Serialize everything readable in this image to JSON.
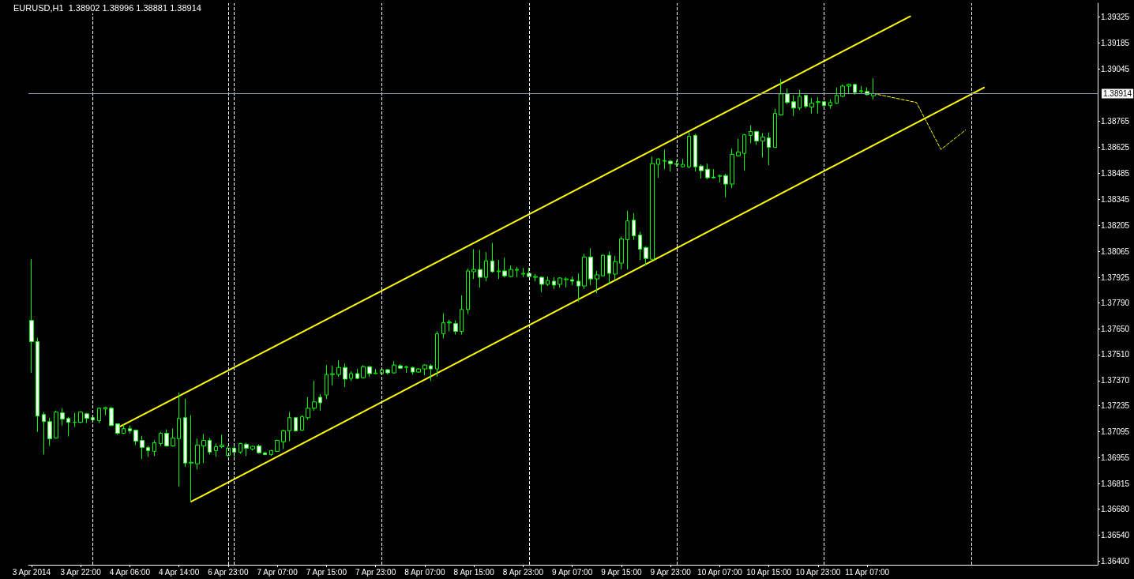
{
  "chart_data": {
    "type": "candlestick",
    "title": "EURUSD,H1  1.38902 1.38996 1.38881 1.38914",
    "color": "#00ff00",
    "categories": [
      "3 Apr 2014",
      null,
      null,
      null,
      null,
      null,
      null,
      null,
      "3 Apr 22:00",
      null,
      null,
      null,
      null,
      null,
      null,
      null,
      "4 Apr 06:00",
      null,
      null,
      null,
      null,
      null,
      null,
      null,
      "4 Apr 14:00",
      null,
      null,
      null,
      null,
      null,
      null,
      null,
      "6 Apr 23:00",
      null,
      null,
      null,
      null,
      null,
      null,
      null,
      "7 Apr 07:00",
      null,
      null,
      null,
      null,
      null,
      null,
      null,
      "7 Apr 15:00",
      null,
      null,
      null,
      null,
      null,
      null,
      null,
      "7 Apr 23:00",
      null,
      null,
      null,
      null,
      null,
      null,
      null,
      "8 Apr 07:00",
      null,
      null,
      null,
      null,
      null,
      null,
      null,
      "8 Apr 15:00",
      null,
      null,
      null,
      null,
      null,
      null,
      null,
      "8 Apr 23:00",
      null,
      null,
      null,
      null,
      null,
      null,
      null,
      "9 Apr 07:00",
      null,
      null,
      null,
      null,
      null,
      null,
      null,
      "9 Apr 15:00",
      null,
      null,
      null,
      null,
      null,
      null,
      null,
      "9 Apr 23:00",
      null,
      null,
      null,
      null,
      null,
      null,
      null,
      "10 Apr 07:00",
      null,
      null,
      null,
      null,
      null,
      null,
      null,
      "10 Apr 15:00",
      null,
      null,
      null,
      null,
      null,
      null,
      null,
      "10 Apr 23:00",
      null,
      null,
      null,
      null,
      null,
      null,
      null,
      "11 Apr 07:00",
      null,
      null,
      null,
      null,
      null,
      null,
      null,
      null,
      null,
      null,
      null,
      null,
      null,
      null,
      null,
      null,
      null,
      null,
      null,
      null,
      null,
      null,
      null,
      null,
      null,
      null,
      null,
      null,
      null,
      null,
      null,
      null,
      null,
      null,
      null,
      null,
      null
    ],
    "ohlc": [
      [
        1.37694,
        1.38023,
        1.37412,
        1.3758
      ],
      [
        1.3758,
        1.37601,
        1.37095,
        1.3718
      ],
      [
        1.37188,
        1.37201,
        1.36973,
        1.3715
      ],
      [
        1.3715,
        1.37171,
        1.37019,
        1.37058
      ],
      [
        1.37062,
        1.37209,
        1.37058,
        1.37201
      ],
      [
        1.37197,
        1.37222,
        1.37129,
        1.37163
      ],
      [
        1.37167,
        1.37176,
        1.3707,
        1.37146
      ],
      [
        1.37146,
        1.37197,
        1.37121,
        1.37147
      ],
      [
        1.37146,
        1.37205,
        1.37142,
        1.37201
      ],
      [
        1.37192,
        1.37197,
        1.37142,
        1.37167
      ],
      [
        1.37171,
        1.37175,
        1.37155,
        1.37159
      ],
      [
        1.37155,
        1.37226,
        1.37142,
        1.37222
      ],
      [
        1.37218,
        1.3723,
        1.37184,
        1.37226
      ],
      [
        1.37222,
        1.3723,
        1.37125,
        1.37129
      ],
      [
        1.37138,
        1.3714,
        1.37079,
        1.37087
      ],
      [
        1.37087,
        1.37133,
        1.37083,
        1.37112
      ],
      [
        1.37112,
        1.37129,
        1.37087,
        1.371
      ],
      [
        1.37104,
        1.37108,
        1.37024,
        1.37045
      ],
      [
        1.37049,
        1.37074,
        1.36948,
        1.37011
      ],
      [
        1.37011,
        1.37019,
        1.36961,
        1.36994
      ],
      [
        1.3699,
        1.37049,
        1.36965,
        1.37036
      ],
      [
        1.37032,
        1.37095,
        1.37019,
        1.37087
      ],
      [
        1.37087,
        1.37108,
        1.37015,
        1.37019
      ],
      [
        1.37019,
        1.37112,
        1.37015,
        1.37062
      ],
      [
        1.37058,
        1.37306,
        1.368,
        1.37167
      ],
      [
        1.37171,
        1.37272,
        1.36906,
        1.36927
      ],
      [
        1.36927,
        1.37184,
        1.3672,
        1.36931
      ],
      [
        1.36923,
        1.37058,
        1.36893,
        1.37024
      ],
      [
        1.37019,
        1.37083,
        1.36927,
        1.37049
      ],
      [
        1.37049,
        1.37062,
        1.36973,
        1.36986
      ],
      [
        1.36994,
        1.37032,
        1.36961,
        1.37015
      ],
      [
        1.37015,
        1.37079,
        1.37007,
        1.37024
      ],
      [
        1.36969,
        1.37019,
        1.36961,
        1.37007
      ],
      [
        1.37007,
        1.37019,
        1.36956,
        1.36986
      ],
      [
        1.36986,
        1.37036,
        1.36977,
        1.37032
      ],
      [
        1.37028,
        1.37036,
        1.36965,
        1.37007
      ],
      [
        1.37003,
        1.37019,
        1.36994,
        1.37017
      ],
      [
        1.37019,
        1.37028,
        1.36977,
        1.36982
      ],
      [
        1.36982,
        1.36986,
        1.36969,
        1.36973
      ],
      [
        1.36973,
        1.36998,
        1.36965,
        1.36994
      ],
      [
        1.3699,
        1.37053,
        1.36986,
        1.37049
      ],
      [
        1.37041,
        1.37108,
        1.37003,
        1.371
      ],
      [
        1.371,
        1.37201,
        1.37045,
        1.37171
      ],
      [
        1.37171,
        1.37176,
        1.37096,
        1.371
      ],
      [
        1.37104,
        1.37184,
        1.371,
        1.37176
      ],
      [
        1.37171,
        1.37281,
        1.37159,
        1.37222
      ],
      [
        1.37222,
        1.37369,
        1.37209,
        1.37256
      ],
      [
        1.37281,
        1.37298,
        1.37209,
        1.37251
      ],
      [
        1.37293,
        1.37454,
        1.37272,
        1.37403
      ],
      [
        1.37403,
        1.3745,
        1.37344,
        1.37407
      ],
      [
        1.37403,
        1.37479,
        1.37391,
        1.37441
      ],
      [
        1.37441,
        1.37462,
        1.37336,
        1.37378
      ],
      [
        1.37382,
        1.3742,
        1.37369,
        1.37408
      ],
      [
        1.37408,
        1.37433,
        1.37378,
        1.37382
      ],
      [
        1.37386,
        1.37454,
        1.37382,
        1.37445
      ],
      [
        1.37445,
        1.3745,
        1.37391,
        1.37408
      ],
      [
        1.37408,
        1.37433,
        1.37404,
        1.37412
      ],
      [
        1.37408,
        1.37433,
        1.37404,
        1.37429
      ],
      [
        1.37429,
        1.37433,
        1.37404,
        1.37412
      ],
      [
        1.37412,
        1.37475,
        1.37408,
        1.37454
      ],
      [
        1.3745,
        1.37458,
        1.37433,
        1.37437
      ],
      [
        1.37441,
        1.3745,
        1.37412,
        1.37445
      ],
      [
        1.37441,
        1.37445,
        1.37403,
        1.37416
      ],
      [
        1.37416,
        1.37437,
        1.37412,
        1.37433
      ],
      [
        1.37433,
        1.37458,
        1.37399,
        1.37454
      ],
      [
        1.3745,
        1.37458,
        1.37369,
        1.37433
      ],
      [
        1.37433,
        1.37635,
        1.37391,
        1.37622
      ],
      [
        1.37622,
        1.37732,
        1.37597,
        1.37681
      ],
      [
        1.37681,
        1.37698,
        1.37635,
        1.37685
      ],
      [
        1.37677,
        1.37694,
        1.37618,
        1.37635
      ],
      [
        1.37635,
        1.37829,
        1.37618,
        1.37753
      ],
      [
        1.37753,
        1.37972,
        1.37728,
        1.3796
      ],
      [
        1.37956,
        1.38077,
        1.37917,
        1.37968
      ],
      [
        1.37968,
        1.38073,
        1.37871,
        1.37926
      ],
      [
        1.37926,
        1.38061,
        1.37905,
        1.38014
      ],
      [
        1.38014,
        1.38111,
        1.37951,
        1.37956
      ],
      [
        1.37956,
        1.38019,
        1.37917,
        1.3796
      ],
      [
        1.3796,
        1.38031,
        1.37926,
        1.37934
      ],
      [
        1.3793,
        1.37989,
        1.37926,
        1.37968
      ],
      [
        1.37964,
        1.37981,
        1.37926,
        1.37968
      ],
      [
        1.37943,
        1.37977,
        1.37926,
        1.37947
      ],
      [
        1.37947,
        1.37977,
        1.37926,
        1.3793
      ],
      [
        1.37926,
        1.37943,
        1.37905,
        1.3793
      ],
      [
        1.37926,
        1.3793,
        1.37846,
        1.37888
      ],
      [
        1.37888,
        1.3793,
        1.37879,
        1.37909
      ],
      [
        1.37905,
        1.37926,
        1.37863,
        1.37884
      ],
      [
        1.37888,
        1.37926,
        1.37871,
        1.37922
      ],
      [
        1.37913,
        1.37926,
        1.37871,
        1.37917
      ],
      [
        1.37913,
        1.3793,
        1.37884,
        1.37905
      ],
      [
        1.37905,
        1.37947,
        1.37795,
        1.37879
      ],
      [
        1.37879,
        1.38052,
        1.37863,
        1.38035
      ],
      [
        1.38035,
        1.38082,
        1.37884,
        1.37917
      ],
      [
        1.37917,
        1.3796,
        1.37841,
        1.37939
      ],
      [
        1.37934,
        1.38048,
        1.3793,
        1.38044
      ],
      [
        1.38044,
        1.38065,
        1.37892,
        1.37947
      ],
      [
        1.37943,
        1.3804,
        1.37913,
        1.3801
      ],
      [
        1.38002,
        1.38145,
        1.37968,
        1.38132
      ],
      [
        1.38128,
        1.38284,
        1.37968,
        1.38229
      ],
      [
        1.38233,
        1.38271,
        1.38128,
        1.38149
      ],
      [
        1.38153,
        1.3817,
        1.38019,
        1.38077
      ],
      [
        1.38086,
        1.38094,
        1.37989,
        1.38027
      ],
      [
        1.38023,
        1.38575,
        1.38019,
        1.38537
      ],
      [
        1.38533,
        1.38566,
        1.38461,
        1.38562
      ],
      [
        1.3855,
        1.38613,
        1.38507,
        1.38554
      ],
      [
        1.3855,
        1.38558,
        1.38495,
        1.38537
      ],
      [
        1.38533,
        1.38554,
        1.3852,
        1.38537
      ],
      [
        1.3852,
        1.38562,
        1.38516,
        1.38533
      ],
      [
        1.3852,
        1.38705,
        1.38512,
        1.38684
      ],
      [
        1.38689,
        1.38697,
        1.38495,
        1.3852
      ],
      [
        1.38524,
        1.38533,
        1.38457,
        1.38499
      ],
      [
        1.38507,
        1.38537,
        1.38453,
        1.38461
      ],
      [
        1.38465,
        1.38507,
        1.38457,
        1.38461
      ],
      [
        1.38469,
        1.38478,
        1.38436,
        1.38473
      ],
      [
        1.38473,
        1.38482,
        1.38356,
        1.38427
      ],
      [
        1.38427,
        1.38617,
        1.38406,
        1.38587
      ],
      [
        1.38579,
        1.38672,
        1.38575,
        1.386
      ],
      [
        1.38592,
        1.38697,
        1.38499,
        1.38692
      ],
      [
        1.38689,
        1.38743,
        1.38646,
        1.3871
      ],
      [
        1.3871,
        1.38714,
        1.38638,
        1.38659
      ],
      [
        1.38659,
        1.38701,
        1.38571,
        1.3868
      ],
      [
        1.38676,
        1.38705,
        1.38529,
        1.38625
      ],
      [
        1.38625,
        1.38832,
        1.38621,
        1.38807
      ],
      [
        1.38799,
        1.38992,
        1.38795,
        1.38912
      ],
      [
        1.38912,
        1.38942,
        1.38857,
        1.38866
      ],
      [
        1.3887,
        1.38904,
        1.38794,
        1.38836
      ],
      [
        1.38836,
        1.38933,
        1.38824,
        1.38899
      ],
      [
        1.38904,
        1.38908,
        1.38836,
        1.38845
      ],
      [
        1.38841,
        1.38891,
        1.38807,
        1.38862
      ],
      [
        1.38866,
        1.38895,
        1.38807,
        1.3887
      ],
      [
        1.3887,
        1.38874,
        1.38845,
        1.38849
      ],
      [
        1.38849,
        1.38883,
        1.38832,
        1.38866
      ],
      [
        1.38862,
        1.38946,
        1.38858,
        1.38904
      ],
      [
        1.38899,
        1.38963,
        1.38895,
        1.38954
      ],
      [
        1.38954,
        1.38967,
        1.38916,
        1.38963
      ],
      [
        1.38963,
        1.38967,
        1.38908,
        1.3892
      ],
      [
        1.38925,
        1.38954,
        1.38912,
        1.38929
      ],
      [
        1.38925,
        1.38946,
        1.38904,
        1.38908
      ],
      [
        1.38902,
        1.38996,
        1.38881,
        1.38914
      ],
      null,
      null,
      null,
      null,
      null,
      null,
      null,
      null,
      null,
      null,
      null,
      null,
      null,
      null,
      null,
      null,
      null,
      null,
      null,
      null,
      null,
      null,
      null,
      null,
      null,
      null,
      null,
      null,
      null,
      null,
      null,
      null,
      null,
      null,
      null,
      null
    ],
    "series": [
      {
        "type": "line",
        "color": "#ffff00",
        "line_style": "solid",
        "values": [
          null,
          null,
          null,
          null,
          null,
          null,
          null,
          null,
          null,
          null,
          null,
          null,
          null,
          null,
          1.37116,
          null,
          null,
          null,
          null,
          null,
          null,
          null,
          null,
          null,
          null,
          null,
          null,
          null,
          null,
          null,
          null,
          null,
          null,
          null,
          null,
          null,
          null,
          null,
          null,
          null,
          null,
          null,
          null,
          null,
          null,
          null,
          null,
          null,
          null,
          null,
          null,
          null,
          null,
          null,
          null,
          null,
          null,
          null,
          null,
          null,
          null,
          null,
          null,
          null,
          null,
          null,
          null,
          null,
          null,
          null,
          null,
          null,
          null,
          null,
          null,
          null,
          null,
          null,
          null,
          null,
          null,
          null,
          null,
          null,
          null,
          null,
          null,
          null,
          null,
          null,
          null,
          null,
          null,
          null,
          null,
          null,
          null,
          null,
          null,
          null,
          null,
          null,
          null,
          null,
          null,
          null,
          null,
          null,
          null,
          null,
          null,
          null,
          null,
          null,
          null,
          null,
          null,
          null,
          null,
          null,
          null,
          null,
          null,
          null,
          null,
          null,
          null,
          null,
          null,
          null,
          null,
          null,
          null,
          null,
          null,
          null,
          null,
          null,
          null,
          null,
          null,
          null,
          null,
          1.39329,
          null,
          null,
          null,
          null,
          null,
          null,
          null,
          null,
          null,
          null,
          null,
          null,
          null,
          null,
          null,
          null,
          null,
          null,
          null,
          null,
          null,
          null,
          null,
          null,
          null,
          null,
          null,
          null,
          null,
          null
        ]
      },
      {
        "type": "line",
        "color": "#ffff00",
        "line_style": "solid",
        "values": [
          null,
          null,
          null,
          null,
          null,
          null,
          null,
          null,
          null,
          null,
          null,
          null,
          null,
          null,
          null,
          null,
          null,
          null,
          null,
          null,
          null,
          null,
          null,
          null,
          null,
          null,
          1.3672,
          null,
          null,
          null,
          null,
          null,
          null,
          null,
          null,
          null,
          null,
          null,
          null,
          null,
          null,
          null,
          null,
          null,
          null,
          null,
          null,
          null,
          null,
          null,
          null,
          null,
          null,
          null,
          null,
          null,
          null,
          null,
          null,
          null,
          null,
          null,
          null,
          null,
          null,
          null,
          null,
          null,
          null,
          null,
          null,
          null,
          null,
          null,
          null,
          null,
          null,
          null,
          null,
          null,
          null,
          null,
          null,
          null,
          null,
          null,
          null,
          null,
          null,
          null,
          null,
          null,
          null,
          null,
          null,
          null,
          null,
          null,
          null,
          null,
          null,
          null,
          null,
          null,
          null,
          null,
          null,
          null,
          null,
          null,
          null,
          null,
          null,
          null,
          null,
          null,
          null,
          null,
          null,
          null,
          null,
          null,
          null,
          null,
          null,
          null,
          null,
          null,
          null,
          null,
          null,
          null,
          null,
          null,
          null,
          null,
          null,
          null,
          null,
          null,
          null,
          null,
          null,
          null,
          null,
          null,
          null,
          null,
          null,
          null,
          null,
          null,
          null,
          null,
          null,
          1.38946,
          null,
          null,
          null,
          null,
          null,
          null,
          null,
          null,
          null,
          null,
          null,
          null,
          null,
          null,
          null,
          null,
          null,
          null
        ]
      },
      {
        "type": "line",
        "color": "#ffff00",
        "line_style": "dashed",
        "values": [
          null,
          null,
          null,
          null,
          null,
          null,
          null,
          null,
          null,
          null,
          null,
          null,
          null,
          null,
          null,
          null,
          null,
          null,
          null,
          null,
          null,
          null,
          null,
          null,
          null,
          null,
          null,
          null,
          null,
          null,
          null,
          null,
          null,
          null,
          null,
          null,
          null,
          null,
          null,
          null,
          null,
          null,
          null,
          null,
          null,
          null,
          null,
          null,
          null,
          null,
          null,
          null,
          null,
          null,
          null,
          null,
          null,
          null,
          null,
          null,
          null,
          null,
          null,
          null,
          null,
          null,
          null,
          null,
          null,
          null,
          null,
          null,
          null,
          null,
          null,
          null,
          null,
          null,
          null,
          null,
          null,
          null,
          null,
          null,
          null,
          null,
          null,
          null,
          null,
          null,
          null,
          null,
          null,
          null,
          null,
          null,
          null,
          null,
          null,
          null,
          null,
          null,
          null,
          null,
          null,
          null,
          null,
          null,
          null,
          null,
          null,
          null,
          null,
          null,
          null,
          null,
          null,
          null,
          null,
          null,
          null,
          null,
          null,
          null,
          null,
          null,
          null,
          null,
          null,
          null,
          null,
          null,
          null,
          null,
          null,
          null,
          null,
          1.38914,
          null,
          null,
          null,
          null,
          null,
          null,
          1.38866,
          null,
          null,
          null,
          1.38613,
          null,
          null,
          null,
          1.38718,
          null,
          null,
          null,
          null,
          null,
          null,
          null,
          null,
          null,
          null,
          null,
          null,
          null,
          null,
          null,
          null,
          null,
          null,
          null,
          null,
          null
        ]
      }
    ],
    "ylim": [
      1.3638,
      1.394
    ],
    "yticks": [
      {
        "value": 1.364,
        "label": "1.36400"
      },
      {
        "value": 1.3654,
        "label": "1.36540"
      },
      {
        "value": 1.3668,
        "label": "1.36680"
      },
      {
        "value": 1.36815,
        "label": "1.36815"
      },
      {
        "value": 1.36955,
        "label": "1.36955"
      },
      {
        "value": 1.37095,
        "label": "1.37095"
      },
      {
        "value": 1.37235,
        "label": "1.37235"
      },
      {
        "value": 1.3737,
        "label": "1.37370"
      },
      {
        "value": 1.3751,
        "label": "1.37510"
      },
      {
        "value": 1.3765,
        "label": "1.37650"
      },
      {
        "value": 1.3779,
        "label": "1.37790"
      },
      {
        "value": 1.37925,
        "label": "1.37925"
      },
      {
        "value": 1.38065,
        "label": "1.38065"
      },
      {
        "value": 1.38205,
        "label": "1.38205"
      },
      {
        "value": 1.38345,
        "label": "1.38345"
      },
      {
        "value": 1.38485,
        "label": "1.38485"
      },
      {
        "value": 1.38625,
        "label": "1.38625"
      },
      {
        "value": 1.38765,
        "label": "1.38765"
      },
      {
        "value": 1.39045,
        "label": "1.39045"
      },
      {
        "value": 1.39185,
        "label": "1.39185"
      },
      {
        "value": 1.39325,
        "label": "1.39325"
      }
    ],
    "ref_lines": [
      {
        "axis": "y",
        "value": 1.38914,
        "label": "1.38914",
        "color": "#8c9ab0",
        "line_style": "solid"
      }
    ]
  }
}
